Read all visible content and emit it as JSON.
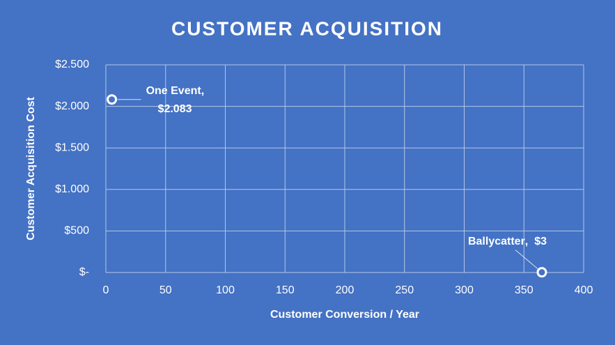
{
  "chart_data": {
    "type": "scatter",
    "title": "CUSTOMER ACQUISITION",
    "x_label": "Customer Conversion / Year",
    "y_label": "Customer Acquisition Cost",
    "series": [
      {
        "name": "One Event",
        "x": [
          5
        ],
        "values": [
          2083
        ],
        "value_labels": [
          "$2.083"
        ],
        "color": "#ffffff"
      },
      {
        "name": "Ballycatter",
        "x": [
          365
        ],
        "values": [
          3
        ],
        "value_labels": [
          "$3"
        ],
        "color": "#ffffff"
      }
    ],
    "data_label_separator": ",",
    "xlim": [
      0,
      400
    ],
    "xticks": [
      0,
      50,
      100,
      150,
      200,
      250,
      300,
      350,
      400
    ],
    "ylim": [
      0,
      2500
    ],
    "yticks": [
      {
        "value": 0,
        "label": "$-"
      },
      {
        "value": 500,
        "label": "$500"
      },
      {
        "value": 1000,
        "label": "$1.000"
      },
      {
        "value": 1500,
        "label": "$1.500"
      },
      {
        "value": 2000,
        "label": "$2.000"
      },
      {
        "value": 2500,
        "label": "$2.500"
      }
    ],
    "grid": true
  }
}
